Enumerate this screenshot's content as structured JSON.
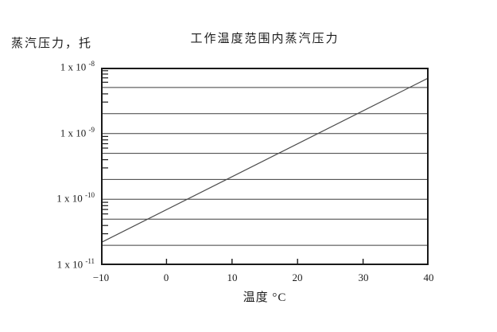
{
  "page": {
    "background_color": "#ffffff",
    "text_color": "#1c1c1c"
  },
  "chart": {
    "axis_color": "#1a1a1a",
    "grid_color": "#3d3d3d",
    "series_color": "#4d4d4d"
  },
  "chart_data": {
    "type": "line",
    "title": "工作温度范围内蒸汽压力",
    "ylabel": "蒸汽压力，托",
    "xlabel": "温度 °C",
    "x_range": [
      -10,
      40
    ],
    "x_ticks": [
      -10,
      0,
      10,
      20,
      30,
      40
    ],
    "y_scale": "log",
    "y_top_exponent": -8,
    "y_bottom_exponent": -11,
    "y_tick_labels": [
      {
        "mantissa": "1 x 10",
        "exponent": "-8",
        "value": 1e-08
      },
      {
        "mantissa": "1 x 10",
        "exponent": "-9",
        "value": 1e-09
      },
      {
        "mantissa": "1 x 10",
        "exponent": "-10",
        "value": 1e-10
      },
      {
        "mantissa": "1 x 10",
        "exponent": "-11",
        "value": 1e-11
      }
    ],
    "y_gridline_values": [
      5e-09,
      2e-09,
      1e-09,
      5e-10,
      2e-10,
      1e-10,
      5e-11,
      2e-11
    ],
    "y_minor_tick_values": [
      9e-09,
      8e-09,
      7e-09,
      6e-09,
      4e-09,
      3e-09,
      9e-10,
      8e-10,
      7e-10,
      6e-10,
      4e-10,
      3e-10,
      9e-11,
      8e-11,
      7e-11,
      6e-11,
      4e-11,
      3e-11
    ],
    "grid": "horizontal-only",
    "legend": "none",
    "series": [
      {
        "name": "蒸汽压力",
        "points": [
          {
            "x": -10,
            "y": 2.2e-11
          },
          {
            "x": 40,
            "y": 7e-09
          }
        ]
      }
    ]
  }
}
